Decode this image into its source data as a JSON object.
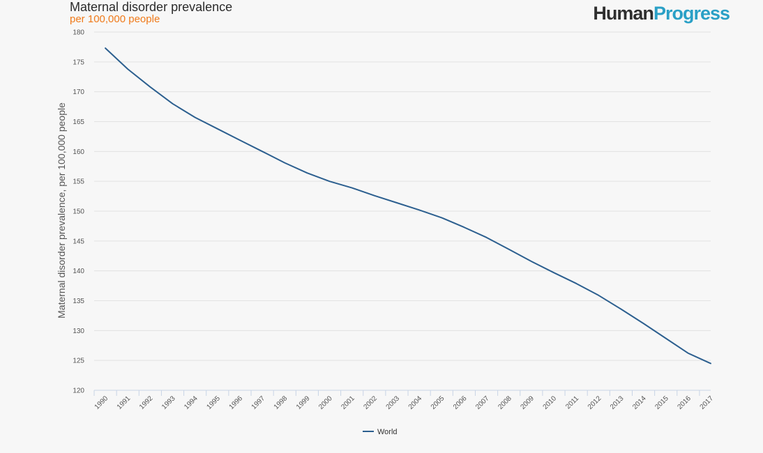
{
  "header": {
    "logo_human": "Human",
    "logo_progress": "Progress"
  },
  "colors": {
    "series": "#2c5f8f",
    "grid": "#e2e2e2",
    "axis": "#c8d4e6",
    "subtitle": "#f07a1a",
    "logo_accent": "#2aa0c6"
  },
  "chart_data": {
    "type": "line",
    "title": "Maternal disorder prevalence",
    "subtitle": "per 100,000 people",
    "ylabel": "Maternal disorder prevalence, per 100,000 people",
    "xlabel": "",
    "ylim": [
      120,
      180
    ],
    "yticks": [
      120,
      125,
      130,
      135,
      140,
      145,
      150,
      155,
      160,
      165,
      170,
      175,
      180
    ],
    "grid": true,
    "legend": "bottom-center",
    "x": [
      "1990",
      "1991",
      "1992",
      "1993",
      "1994",
      "1995",
      "1996",
      "1997",
      "1998",
      "1999",
      "2000",
      "2001",
      "2002",
      "2003",
      "2004",
      "2005",
      "2006",
      "2007",
      "2008",
      "2009",
      "2010",
      "2011",
      "2012",
      "2013",
      "2014",
      "2015",
      "2016",
      "2017"
    ],
    "series": [
      {
        "name": "World",
        "values": [
          177.3,
          173.8,
          170.8,
          168.0,
          165.7,
          163.8,
          161.9,
          160.0,
          158.1,
          156.4,
          155.0,
          153.9,
          152.6,
          151.4,
          150.2,
          148.9,
          147.3,
          145.6,
          143.6,
          141.6,
          139.7,
          137.9,
          135.9,
          133.6,
          131.2,
          128.7,
          126.2,
          124.5
        ]
      }
    ]
  }
}
